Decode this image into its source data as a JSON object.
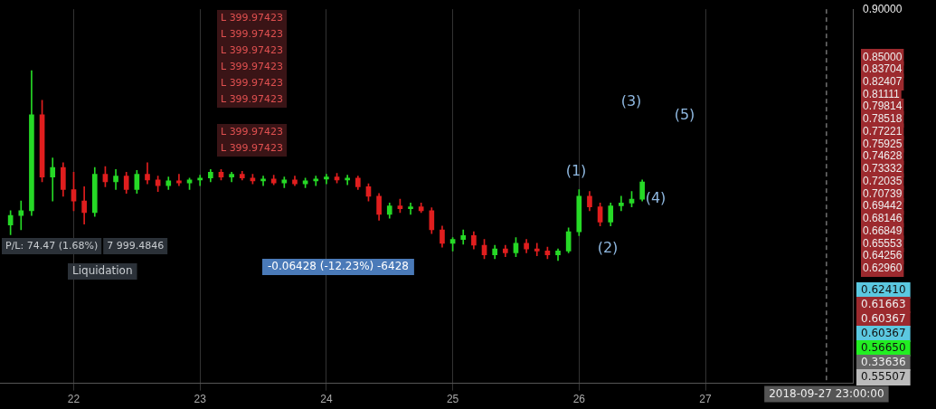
{
  "chart_data": {
    "type": "candlestick",
    "x": [
      "2018-09-21T12:00",
      "2018-09-21T14:00",
      "2018-09-21T16:00",
      "2018-09-21T18:00",
      "2018-09-21T20:00",
      "2018-09-21T22:00",
      "2018-09-22T00:00",
      "2018-09-22T02:00",
      "2018-09-22T04:00",
      "2018-09-22T06:00",
      "2018-09-22T08:00",
      "2018-09-22T10:00",
      "2018-09-22T12:00",
      "2018-09-22T14:00",
      "2018-09-22T16:00",
      "2018-09-22T18:00",
      "2018-09-22T20:00",
      "2018-09-22T22:00",
      "2018-09-23T00:00",
      "2018-09-23T02:00",
      "2018-09-23T04:00",
      "2018-09-23T06:00",
      "2018-09-23T08:00",
      "2018-09-23T10:00",
      "2018-09-23T12:00",
      "2018-09-23T14:00",
      "2018-09-23T16:00",
      "2018-09-23T18:00",
      "2018-09-23T20:00",
      "2018-09-23T22:00",
      "2018-09-24T00:00",
      "2018-09-24T02:00",
      "2018-09-24T04:00",
      "2018-09-24T06:00",
      "2018-09-24T08:00",
      "2018-09-24T10:00",
      "2018-09-24T12:00",
      "2018-09-24T14:00",
      "2018-09-24T16:00",
      "2018-09-24T18:00",
      "2018-09-24T20:00",
      "2018-09-24T22:00",
      "2018-09-25T00:00",
      "2018-09-25T02:00",
      "2018-09-25T04:00",
      "2018-09-25T06:00",
      "2018-09-25T08:00",
      "2018-09-25T10:00",
      "2018-09-25T12:00",
      "2018-09-25T14:00",
      "2018-09-25T16:00",
      "2018-09-25T18:00",
      "2018-09-25T20:00",
      "2018-09-25T22:00",
      "2018-09-26T00:00",
      "2018-09-26T02:00",
      "2018-09-26T04:00",
      "2018-09-26T06:00",
      "2018-09-26T08:00",
      "2018-09-26T10:00",
      "2018-09-26T12:00"
    ],
    "ohlc": [
      [
        0.675,
        0.69,
        0.665,
        0.685
      ],
      [
        0.685,
        0.7,
        0.67,
        0.69
      ],
      [
        0.69,
        0.836,
        0.685,
        0.79
      ],
      [
        0.79,
        0.805,
        0.72,
        0.725
      ],
      [
        0.725,
        0.745,
        0.7,
        0.735
      ],
      [
        0.735,
        0.74,
        0.705,
        0.712
      ],
      [
        0.712,
        0.73,
        0.69,
        0.7
      ],
      [
        0.7,
        0.715,
        0.676,
        0.688
      ],
      [
        0.688,
        0.735,
        0.684,
        0.728
      ],
      [
        0.728,
        0.736,
        0.715,
        0.72
      ],
      [
        0.72,
        0.733,
        0.712,
        0.726
      ],
      [
        0.726,
        0.73,
        0.708,
        0.712
      ],
      [
        0.712,
        0.732,
        0.708,
        0.728
      ],
      [
        0.728,
        0.74,
        0.718,
        0.722
      ],
      [
        0.722,
        0.726,
        0.71,
        0.716
      ],
      [
        0.716,
        0.725,
        0.712,
        0.721
      ],
      [
        0.721,
        0.728,
        0.716,
        0.719
      ],
      [
        0.719,
        0.724,
        0.712,
        0.722
      ],
      [
        0.722,
        0.727,
        0.716,
        0.724
      ],
      [
        0.724,
        0.733,
        0.72,
        0.73
      ],
      [
        0.73,
        0.733,
        0.722,
        0.725
      ],
      [
        0.725,
        0.73,
        0.72,
        0.728
      ],
      [
        0.728,
        0.731,
        0.722,
        0.724
      ],
      [
        0.724,
        0.728,
        0.718,
        0.721
      ],
      [
        0.721,
        0.726,
        0.716,
        0.723
      ],
      [
        0.723,
        0.727,
        0.717,
        0.719
      ],
      [
        0.719,
        0.725,
        0.714,
        0.722
      ],
      [
        0.722,
        0.726,
        0.716,
        0.718
      ],
      [
        0.718,
        0.724,
        0.714,
        0.721
      ],
      [
        0.721,
        0.726,
        0.716,
        0.723
      ],
      [
        0.723,
        0.728,
        0.718,
        0.725
      ],
      [
        0.725,
        0.729,
        0.719,
        0.722
      ],
      [
        0.722,
        0.727,
        0.717,
        0.724
      ],
      [
        0.724,
        0.726,
        0.712,
        0.715
      ],
      [
        0.715,
        0.718,
        0.7,
        0.705
      ],
      [
        0.705,
        0.708,
        0.68,
        0.686
      ],
      [
        0.686,
        0.698,
        0.682,
        0.695
      ],
      [
        0.695,
        0.702,
        0.688,
        0.692
      ],
      [
        0.692,
        0.698,
        0.686,
        0.694
      ],
      [
        0.694,
        0.698,
        0.688,
        0.69
      ],
      [
        0.69,
        0.693,
        0.666,
        0.67
      ],
      [
        0.67,
        0.674,
        0.652,
        0.656
      ],
      [
        0.656,
        0.662,
        0.648,
        0.66
      ],
      [
        0.66,
        0.67,
        0.655,
        0.664
      ],
      [
        0.664,
        0.668,
        0.65,
        0.654
      ],
      [
        0.654,
        0.66,
        0.64,
        0.644
      ],
      [
        0.644,
        0.654,
        0.64,
        0.65
      ],
      [
        0.65,
        0.654,
        0.642,
        0.646
      ],
      [
        0.646,
        0.662,
        0.642,
        0.656
      ],
      [
        0.656,
        0.66,
        0.646,
        0.65
      ],
      [
        0.65,
        0.656,
        0.643,
        0.648
      ],
      [
        0.648,
        0.652,
        0.64,
        0.644
      ],
      [
        0.644,
        0.65,
        0.638,
        0.648
      ],
      [
        0.648,
        0.672,
        0.646,
        0.668
      ],
      [
        0.668,
        0.712,
        0.664,
        0.705
      ],
      [
        0.705,
        0.71,
        0.69,
        0.694
      ],
      [
        0.694,
        0.698,
        0.674,
        0.678
      ],
      [
        0.678,
        0.698,
        0.674,
        0.695
      ],
      [
        0.695,
        0.705,
        0.69,
        0.698
      ],
      [
        0.698,
        0.71,
        0.694,
        0.702
      ],
      [
        0.702,
        0.722,
        0.7,
        0.72
      ]
    ],
    "colors": [
      "#26d926",
      "#26d926",
      "#26d926",
      "#e01e1e",
      "#26d926",
      "#e01e1e",
      "#e01e1e",
      "#e01e1e",
      "#26d926",
      "#e01e1e",
      "#26d926",
      "#e01e1e",
      "#26d926",
      "#e01e1e",
      "#e01e1e",
      "#26d926",
      "#e01e1e",
      "#26d926",
      "#26d926",
      "#26d926",
      "#e01e1e",
      "#26d926",
      "#e01e1e",
      "#e01e1e",
      "#26d926",
      "#e01e1e",
      "#26d926",
      "#e01e1e",
      "#26d926",
      "#26d926",
      "#26d926",
      "#e01e1e",
      "#26d926",
      "#e01e1e",
      "#e01e1e",
      "#e01e1e",
      "#26d926",
      "#e01e1e",
      "#26d926",
      "#e01e1e",
      "#e01e1e",
      "#e01e1e",
      "#26d926",
      "#26d926",
      "#e01e1e",
      "#e01e1e",
      "#26d926",
      "#e01e1e",
      "#26d926",
      "#e01e1e",
      "#e01e1e",
      "#e01e1e",
      "#26d926",
      "#26d926",
      "#26d926",
      "#e01e1e",
      "#e01e1e",
      "#26d926",
      "#26d926",
      "#26d926",
      "#26d926"
    ],
    "xlim": [
      "2018-09-21T10:00",
      "2018-09-28T04:00"
    ],
    "xticks": [
      {
        "value": "2018-09-22",
        "label": "22"
      },
      {
        "value": "2018-09-23",
        "label": "23"
      },
      {
        "value": "2018-09-24",
        "label": "24"
      },
      {
        "value": "2018-09-25",
        "label": "25"
      },
      {
        "value": "2018-09-26",
        "label": "26"
      },
      {
        "value": "2018-09-27",
        "label": "27"
      }
    ],
    "ylim": [
      0.51,
      0.9
    ],
    "yticks": [
      {
        "value": 0.9,
        "label": "0.90000"
      },
      {
        "value": 0.85,
        "label": "0.85000"
      },
      {
        "value": 0.83704,
        "label": "0.83704"
      },
      {
        "value": 0.82407,
        "label": "0.82407"
      },
      {
        "value": 0.81111,
        "label": "0.81111"
      },
      {
        "value": 0.79814,
        "label": "0.79814"
      },
      {
        "value": 0.78518,
        "label": "0.78518"
      },
      {
        "value": 0.77221,
        "label": "0.77221"
      },
      {
        "value": 0.75925,
        "label": "0.75925"
      },
      {
        "value": 0.74628,
        "label": "0.74628"
      },
      {
        "value": 0.73332,
        "label": "0.73332"
      },
      {
        "value": 0.72035,
        "label": "0.72035"
      },
      {
        "value": 0.70739,
        "label": "0.70739"
      },
      {
        "value": 0.69442,
        "label": "0.69442"
      },
      {
        "value": 0.68146,
        "label": "0.68146"
      },
      {
        "value": 0.66849,
        "label": "0.66849"
      },
      {
        "value": 0.65553,
        "label": "0.65553"
      },
      {
        "value": 0.64256,
        "label": "0.64256"
      },
      {
        "value": 0.6296,
        "label": "0.62960"
      }
    ],
    "grid": "x",
    "legend": false,
    "ref_lines": [
      {
        "axis": "x",
        "value": "2018-09-27T23:00",
        "label": "2018-09-27 23:00:00",
        "color": "#aaaaaa",
        "line_style": "dashed"
      }
    ],
    "annotations": [
      "L 399.97423",
      "L 399.97423",
      "L 399.97423",
      "L 399.97423",
      "L 399.97423",
      "L 399.97423",
      "L 399.97423",
      "L 399.97423",
      "P/L: 74.47 (1.68%)",
      "7 999.4846",
      "Liquidation",
      "-0.06428 (-12.23%) -6428",
      "0.62410",
      "0.61663",
      "0.60367",
      "0.60367",
      "0.56650",
      "0.33636",
      "0.55507",
      "(1)",
      "(2)",
      "(3)",
      "(4)",
      "(5)"
    ]
  }
}
